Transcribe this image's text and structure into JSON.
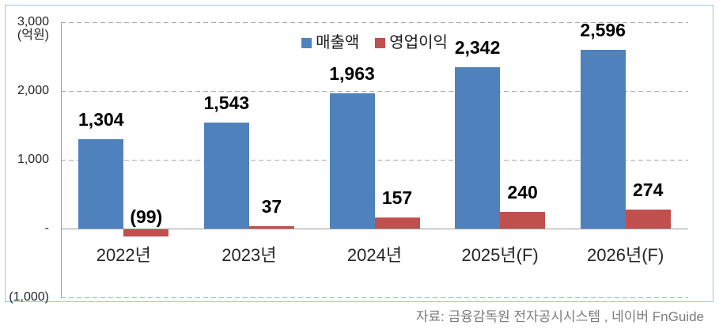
{
  "chart_data": {
    "type": "bar",
    "title": "",
    "unit": "(억원)",
    "categories": [
      "2022년",
      "2023년",
      "2024년",
      "2025년(F)",
      "2026년(F)"
    ],
    "series": [
      {
        "name": "매출액",
        "color": "#4F81BD",
        "values": [
          1304,
          1543,
          1963,
          2342,
          2596
        ],
        "labels": [
          "1,304",
          "1,543",
          "1,963",
          "2,342",
          "2,596"
        ]
      },
      {
        "name": "영업이익",
        "color": "#C0504D",
        "values": [
          -99,
          37,
          157,
          240,
          274
        ],
        "labels": [
          "(99)",
          "37",
          "157",
          "240",
          "274"
        ]
      }
    ],
    "ylim": [
      -1000,
      3000
    ],
    "yticks": [
      {
        "value": 3000,
        "label": "3,000"
      },
      {
        "value": 2000,
        "label": "2,000"
      },
      {
        "value": 1000,
        "label": "1,000"
      },
      {
        "value": 0,
        "label": "-"
      },
      {
        "value": -1000,
        "label": "(1,000)"
      }
    ],
    "grid": "horizontal-dashed",
    "legend_position": "top-center"
  },
  "source": {
    "text": "자료: 금융감독원 전자공시시스템 , 네이버 FnGuide"
  },
  "colors": {
    "frame_border": "#9DC3E6",
    "gridline": "#ABABAB",
    "axis": "#9B9B9B",
    "revenue_bar": "#4F81BD",
    "profit_bar": "#C0504D",
    "source_text": "#7B7B7B"
  }
}
